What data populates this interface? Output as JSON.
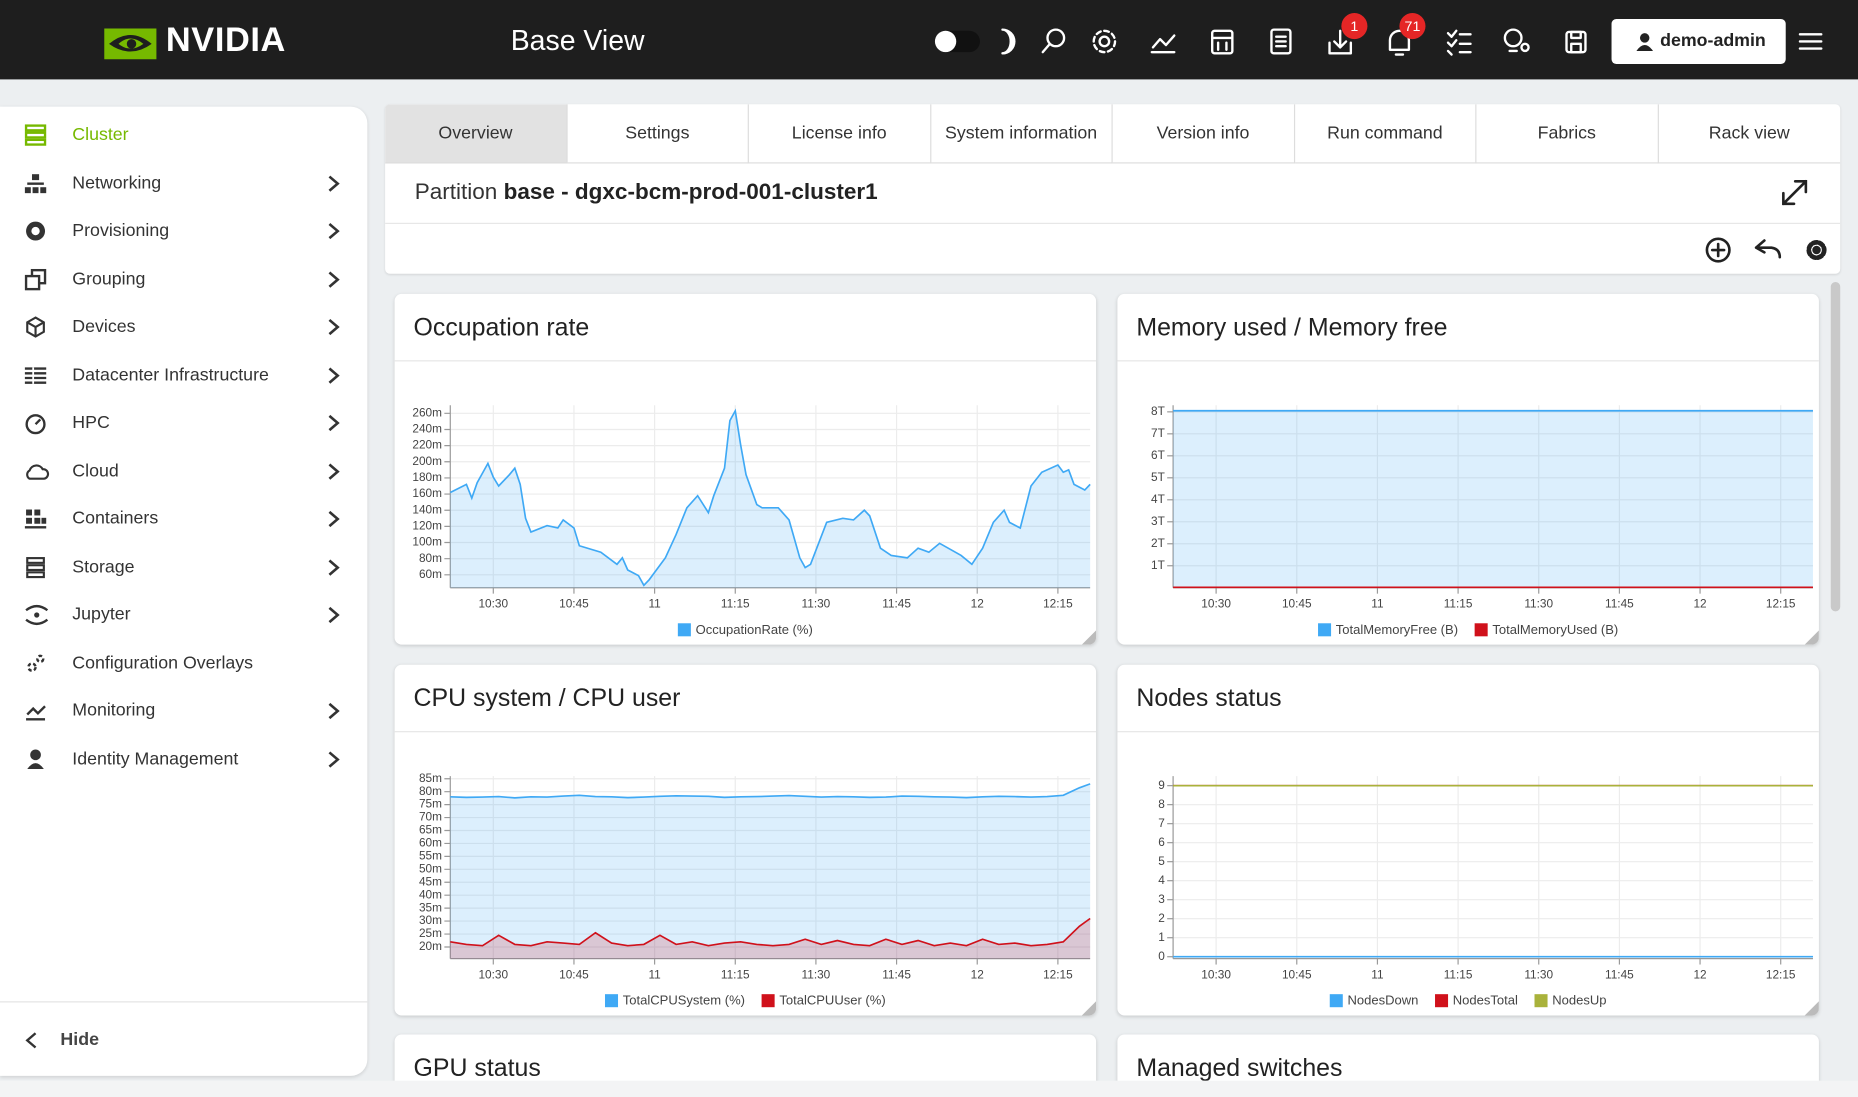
{
  "header": {
    "brand": "NVIDIA",
    "title": "Base View",
    "badges": [
      "1",
      "71"
    ],
    "user": "demo-admin"
  },
  "sidebar": {
    "items": [
      "Cluster",
      "Networking",
      "Provisioning",
      "Grouping",
      "Devices",
      "Datacenter Infrastructure",
      "HPC",
      "Cloud",
      "Containers",
      "Storage",
      "Jupyter",
      "Configuration Overlays",
      "Monitoring",
      "Identity Management"
    ],
    "hide": "Hide"
  },
  "tabs": [
    "Overview",
    "Settings",
    "License info",
    "System information",
    "Version info",
    "Run command",
    "Fabrics",
    "Rack view"
  ],
  "partition": {
    "prefix": "Partition",
    "name": "base - dgxc-bcm-prod-001-cluster1"
  },
  "cards": [
    "GPU status",
    "Managed switches"
  ],
  "chart_data": [
    {
      "type": "area",
      "title": "Occupation rate",
      "grid": true,
      "legend": "bottom",
      "x": [
        "10:22",
        "10:25",
        "10:26",
        "10:27",
        "10:29",
        "10:30",
        "10:31",
        "10:33",
        "10:34",
        "10:35",
        "10:36",
        "10:37",
        "10:40",
        "10:42",
        "10:43",
        "10:45",
        "10:46",
        "10:50",
        "10:53",
        "10:54",
        "10:55",
        "10:57",
        "10:58",
        "10:59",
        "11:02",
        "11:04",
        "11:06",
        "11:08",
        "11:10",
        "11:11",
        "11:13",
        "11:14",
        "11:15",
        "11:16",
        "11:17",
        "11:19",
        "11:20",
        "11:23",
        "11:25",
        "11:27",
        "11:28",
        "11:29",
        "11:32",
        "11:35",
        "11:37",
        "11:39",
        "11:40",
        "11:42",
        "11:44",
        "11:47",
        "11:49",
        "11:51",
        "11:53",
        "11:57",
        "11:59",
        "12:01",
        "12:03",
        "12:05",
        "12:06",
        "12:08",
        "12:10",
        "12:12",
        "12:15",
        "12:16",
        "12:17",
        "12:18",
        "12:20",
        "12:21"
      ],
      "series": [
        {
          "name": "OccupationRate (%)",
          "color": "#3fa9f5",
          "values": [
            162,
            172,
            155,
            174,
            198,
            181,
            170,
            184,
            192,
            172,
            130,
            113,
            121,
            118,
            128,
            118,
            96,
            88,
            73,
            81,
            66,
            59,
            47,
            54,
            81,
            110,
            143,
            158,
            137,
            158,
            192,
            251,
            263,
            221,
            184,
            147,
            143,
            143,
            128,
            81,
            69,
            73,
            125,
            130,
            128,
            140,
            133,
            93,
            84,
            81,
            93,
            88,
            99,
            84,
            73,
            93,
            125,
            140,
            125,
            118,
            170,
            187,
            196,
            187,
            190,
            172,
            165,
            172
          ]
        }
      ],
      "xlim": [
        "10:22",
        "12:21"
      ],
      "ylim": [
        44,
        270
      ],
      "xticks": [
        "10:30",
        "10:45",
        {
          "value": "11:00",
          "label": "11"
        },
        "11:15",
        "11:30",
        "11:45",
        {
          "value": "12:00",
          "label": "12"
        },
        "12:15"
      ],
      "yticks": [
        {
          "value": 60,
          "label": "60m"
        },
        {
          "value": 80,
          "label": "80m"
        },
        {
          "value": 100,
          "label": "100m"
        },
        {
          "value": 120,
          "label": "120m"
        },
        {
          "value": 140,
          "label": "140m"
        },
        {
          "value": 160,
          "label": "160m"
        },
        {
          "value": 180,
          "label": "180m"
        },
        {
          "value": 200,
          "label": "200m"
        },
        {
          "value": 220,
          "label": "220m"
        },
        {
          "value": 240,
          "label": "240m"
        },
        {
          "value": 260,
          "label": "260m"
        }
      ]
    },
    {
      "type": "area",
      "title": "Memory used / Memory free",
      "grid": true,
      "legend": "bottom",
      "x": [
        "10:22",
        "12:21"
      ],
      "series": [
        {
          "name": "TotalMemoryFree (B)",
          "color": "#3fa9f5",
          "values": [
            8.05,
            8.05
          ]
        },
        {
          "name": "TotalMemoryUsed (B)",
          "color": "#d0111b",
          "values": [
            0.02,
            0.02
          ]
        }
      ],
      "xlim": [
        "10:22",
        "12:21"
      ],
      "ylim": [
        0,
        8.3
      ],
      "xticks": [
        "10:30",
        "10:45",
        {
          "value": "11:00",
          "label": "11"
        },
        "11:15",
        "11:30",
        "11:45",
        {
          "value": "12:00",
          "label": "12"
        },
        "12:15"
      ],
      "yticks": [
        {
          "value": 1,
          "label": "1T"
        },
        {
          "value": 2,
          "label": "2T"
        },
        {
          "value": 3,
          "label": "3T"
        },
        {
          "value": 4,
          "label": "4T"
        },
        {
          "value": 5,
          "label": "5T"
        },
        {
          "value": 6,
          "label": "6T"
        },
        {
          "value": 7,
          "label": "7T"
        },
        {
          "value": 8,
          "label": "8T"
        }
      ]
    },
    {
      "type": "area",
      "title": "CPU system / CPU user",
      "grid": true,
      "legend": "bottom",
      "x": [
        "10:22",
        "10:25",
        "10:28",
        "10:31",
        "10:34",
        "10:37",
        "10:40",
        "10:43",
        "10:46",
        "10:49",
        "10:52",
        "10:55",
        "10:58",
        "11:01",
        "11:04",
        "11:07",
        "11:10",
        "11:13",
        "11:16",
        "11:19",
        "11:22",
        "11:25",
        "11:28",
        "11:31",
        "11:34",
        "11:37",
        "11:40",
        "11:43",
        "11:46",
        "11:49",
        "11:52",
        "11:55",
        "11:58",
        "12:01",
        "12:04",
        "12:07",
        "12:10",
        "12:13",
        "12:16",
        "12:19",
        "12:21"
      ],
      "series": [
        {
          "name": "TotalCPUSystem (%)",
          "color": "#3fa9f5",
          "values": [
            78,
            77.8,
            77.9,
            78.1,
            77.6,
            78,
            77.9,
            78.3,
            78.6,
            78.1,
            78,
            77.7,
            77.9,
            78.2,
            78.4,
            78.3,
            78.2,
            77.8,
            78,
            78.1,
            78.3,
            78.5,
            78.2,
            77.9,
            78.1,
            78,
            77.8,
            77.9,
            78.3,
            78.2,
            78,
            77.9,
            77.7,
            78,
            78.2,
            78.1,
            77.9,
            78.1,
            78.6,
            81.5,
            83
          ]
        },
        {
          "name": "TotalCPUUser (%)",
          "color": "#d0111b",
          "values": [
            22,
            21,
            20.5,
            24.5,
            21,
            20.5,
            22,
            21.5,
            21,
            25.5,
            21.5,
            20.5,
            21,
            24.5,
            21,
            22,
            20.5,
            21.5,
            22,
            21,
            20.5,
            21,
            23,
            21,
            22.5,
            21,
            20.5,
            23,
            21,
            22.5,
            20.5,
            21.5,
            20.5,
            23,
            21,
            21.5,
            20.5,
            21,
            22,
            28,
            31
          ]
        }
      ],
      "xlim": [
        "10:22",
        "12:21"
      ],
      "ylim": [
        15.5,
        86
      ],
      "xticks": [
        "10:30",
        "10:45",
        {
          "value": "11:00",
          "label": "11"
        },
        "11:15",
        "11:30",
        "11:45",
        {
          "value": "12:00",
          "label": "12"
        },
        "12:15"
      ],
      "yticks": [
        {
          "value": 20,
          "label": "20m"
        },
        {
          "value": 25,
          "label": "25m"
        },
        {
          "value": 30,
          "label": "30m"
        },
        {
          "value": 35,
          "label": "35m"
        },
        {
          "value": 40,
          "label": "40m"
        },
        {
          "value": 45,
          "label": "45m"
        },
        {
          "value": 50,
          "label": "50m"
        },
        {
          "value": 55,
          "label": "55m"
        },
        {
          "value": 60,
          "label": "60m"
        },
        {
          "value": 65,
          "label": "65m"
        },
        {
          "value": 70,
          "label": "70m"
        },
        {
          "value": 75,
          "label": "75m"
        },
        {
          "value": 80,
          "label": "80m"
        },
        {
          "value": 85,
          "label": "85m"
        }
      ]
    },
    {
      "type": "line",
      "title": "Nodes status",
      "grid": true,
      "legend": "bottom",
      "x": [
        "10:22",
        "12:21"
      ],
      "series": [
        {
          "name": "NodesDown",
          "color": "#3fa9f5",
          "values": [
            0,
            0
          ]
        },
        {
          "name": "NodesTotal",
          "color": "#d0111b",
          "values": [
            9,
            9
          ]
        },
        {
          "name": "NodesUp",
          "color": "#a9b23b",
          "values": [
            9,
            9
          ]
        }
      ],
      "xlim": [
        "10:22",
        "12:21"
      ],
      "ylim": [
        -0.1,
        9.5
      ],
      "xticks": [
        "10:30",
        "10:45",
        {
          "value": "11:00",
          "label": "11"
        },
        "11:15",
        "11:30",
        "11:45",
        {
          "value": "12:00",
          "label": "12"
        },
        "12:15"
      ],
      "yticks": [
        0,
        1,
        2,
        3,
        4,
        5,
        6,
        7,
        8,
        9
      ]
    }
  ]
}
